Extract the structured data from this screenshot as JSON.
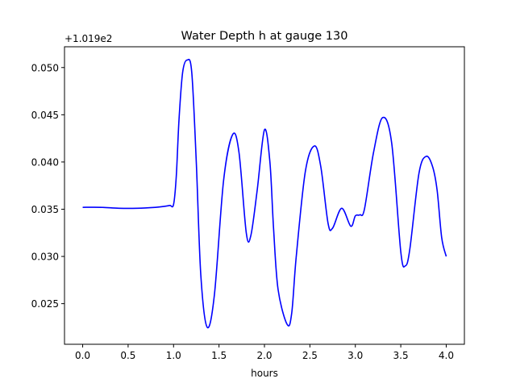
{
  "chart_data": {
    "type": "line",
    "title": "Water Depth h at gauge 130",
    "xlabel": "hours",
    "ylabel": "",
    "offset_label": "+1.019e2",
    "xlim": [
      -0.2,
      4.2
    ],
    "ylim": [
      0.0207,
      0.0522
    ],
    "x_ticks": [
      0.0,
      0.5,
      1.0,
      1.5,
      2.0,
      2.5,
      3.0,
      3.5,
      4.0
    ],
    "x_tick_labels": [
      "0.0",
      "0.5",
      "1.0",
      "1.5",
      "2.0",
      "2.5",
      "3.0",
      "3.5",
      "4.0"
    ],
    "y_ticks": [
      0.025,
      0.03,
      0.035,
      0.04,
      0.045,
      0.05
    ],
    "y_tick_labels": [
      "0.025",
      "0.030",
      "0.035",
      "0.040",
      "0.045",
      "0.050"
    ],
    "grid": false,
    "series": [
      {
        "color": "#0000ff",
        "x": [
          0.0,
          0.2,
          0.4,
          0.6,
          0.8,
          0.9,
          0.96,
          1.0,
          1.03,
          1.06,
          1.1,
          1.15,
          1.2,
          1.25,
          1.3,
          1.37,
          1.45,
          1.55,
          1.65,
          1.72,
          1.8,
          1.85,
          1.92,
          2.0,
          2.06,
          2.1,
          2.15,
          2.25,
          2.3,
          2.35,
          2.45,
          2.55,
          2.62,
          2.7,
          2.75,
          2.85,
          2.95,
          3.0,
          3.05,
          3.1,
          3.2,
          3.3,
          3.4,
          3.5,
          3.55,
          3.6,
          3.7,
          3.78,
          3.85,
          3.9,
          3.95,
          4.0
        ],
        "y": [
          0.0352,
          0.0352,
          0.0351,
          0.0351,
          0.0352,
          0.0353,
          0.0354,
          0.0355,
          0.0385,
          0.0445,
          0.0495,
          0.0508,
          0.0495,
          0.04,
          0.028,
          0.0225,
          0.026,
          0.038,
          0.0429,
          0.041,
          0.0325,
          0.0322,
          0.037,
          0.0434,
          0.04,
          0.033,
          0.0265,
          0.0228,
          0.024,
          0.03,
          0.039,
          0.0417,
          0.0395,
          0.0335,
          0.033,
          0.0351,
          0.0332,
          0.0343,
          0.0344,
          0.035,
          0.041,
          0.0447,
          0.042,
          0.0305,
          0.029,
          0.0308,
          0.0388,
          0.0406,
          0.0395,
          0.037,
          0.032,
          0.03
        ]
      }
    ]
  }
}
